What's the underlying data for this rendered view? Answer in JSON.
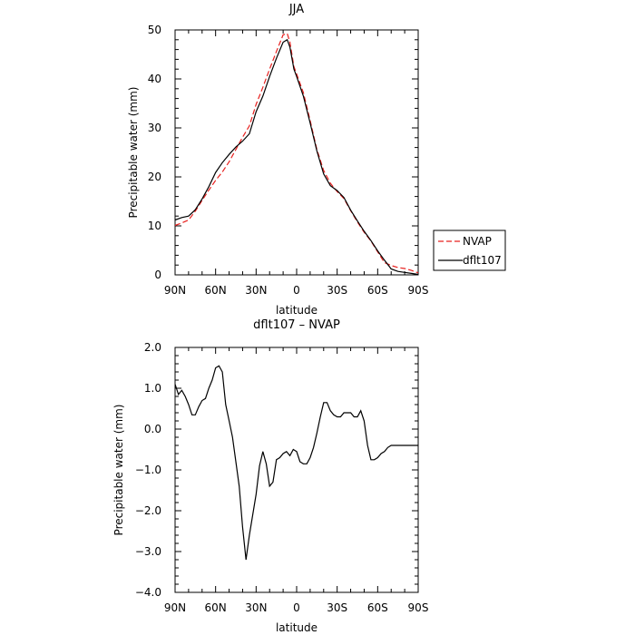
{
  "chart_data": [
    {
      "type": "line",
      "title": "JJA",
      "xlabel": "latitude",
      "ylabel": "Precipitable water (mm)",
      "xlim": [
        90,
        -90
      ],
      "ylim": [
        0,
        50
      ],
      "x_ticks": [
        90,
        60,
        30,
        0,
        -30,
        -60,
        -90
      ],
      "x_tick_labels": [
        "90N",
        "60N",
        "30N",
        "0",
        "30S",
        "60S",
        "90S"
      ],
      "y_ticks": [
        0,
        10,
        20,
        30,
        40,
        50
      ],
      "y_tick_labels": [
        "0",
        "10",
        "20",
        "30",
        "40",
        "50"
      ],
      "legend_position": "right",
      "series": [
        {
          "name": "NVAP",
          "color": "#e8201e",
          "dash": "dashed",
          "x": [
            90,
            85,
            80,
            75,
            70,
            65,
            60,
            55,
            50,
            45,
            40,
            35,
            30,
            25,
            20,
            15,
            10,
            7,
            5,
            2,
            0,
            -5,
            -10,
            -15,
            -20,
            -25,
            -30,
            -35,
            -40,
            -45,
            -50,
            -55,
            -60,
            -65,
            -70,
            -75,
            -80,
            -85,
            -90
          ],
          "y": [
            10.1,
            10.6,
            11.2,
            13.0,
            15.2,
            17.3,
            19.3,
            21.0,
            23.1,
            25.6,
            28.1,
            30.4,
            34.8,
            38.3,
            42.0,
            45.6,
            49.0,
            49.3,
            47.5,
            42.5,
            41.0,
            37.2,
            31.5,
            25.6,
            21.3,
            18.7,
            17.0,
            15.6,
            13.1,
            10.8,
            8.7,
            6.9,
            4.7,
            2.5,
            1.9,
            1.5,
            1.3,
            0.9,
            0.4
          ]
        },
        {
          "name": "dflt107",
          "color": "#000000",
          "dash": "solid",
          "x": [
            90,
            85,
            80,
            75,
            70,
            65,
            60,
            55,
            50,
            45,
            40,
            35,
            30,
            25,
            20,
            15,
            10,
            7,
            5,
            2,
            0,
            -5,
            -10,
            -15,
            -20,
            -25,
            -30,
            -35,
            -40,
            -45,
            -50,
            -55,
            -60,
            -65,
            -70,
            -75,
            -80,
            -85,
            -90
          ],
          "y": [
            11.2,
            11.7,
            12.0,
            13.3,
            15.5,
            18.0,
            20.9,
            22.9,
            24.6,
            26.1,
            27.3,
            28.8,
            33.3,
            36.5,
            40.5,
            44.2,
            47.5,
            48.0,
            46.5,
            42.0,
            40.5,
            36.5,
            31.0,
            25.3,
            20.6,
            18.2,
            17.2,
            15.8,
            13.2,
            11.0,
            8.9,
            7.0,
            4.9,
            3.0,
            1.2,
            0.7,
            0.5,
            0.3,
            0.1
          ]
        }
      ]
    },
    {
      "type": "line",
      "title": "dflt107 – NVAP",
      "xlabel": "latitude",
      "ylabel": "Precipitable water (mm)",
      "xlim": [
        90,
        -90
      ],
      "ylim": [
        -4.0,
        2.0
      ],
      "x_ticks": [
        90,
        60,
        30,
        0,
        -30,
        -60,
        -90
      ],
      "x_tick_labels": [
        "90N",
        "60N",
        "30N",
        "0",
        "30S",
        "60S",
        "90S"
      ],
      "y_ticks": [
        -4.0,
        -3.0,
        -2.0,
        -1.0,
        0.0,
        1.0,
        2.0
      ],
      "y_tick_labels": [
        "−4.0",
        "−3.0",
        "−2.0",
        "−1.0",
        "0.0",
        "1.0",
        "2.0"
      ],
      "series": [
        {
          "color": "#000000",
          "dash": "solid",
          "x": [
            90,
            87.5,
            85,
            82.5,
            80,
            77.5,
            75,
            72.5,
            70,
            67.5,
            65,
            62.5,
            60,
            57.5,
            55,
            52.5,
            50,
            47.5,
            45,
            42.5,
            40,
            37.5,
            35,
            32.5,
            30,
            27.5,
            25,
            22.5,
            20,
            17.5,
            15,
            12.5,
            10,
            7.5,
            5,
            2.5,
            0,
            -2.5,
            -5,
            -7.5,
            -10,
            -12.5,
            -15,
            -17.5,
            -20,
            -22.5,
            -25,
            -27.5,
            -30,
            -32.5,
            -35,
            -37.5,
            -40,
            -42.5,
            -45,
            -47.5,
            -50,
            -52.5,
            -55,
            -57.5,
            -60,
            -62.5,
            -65,
            -67.5,
            -70,
            -72.5,
            -75,
            -77.5,
            -80,
            -82.5,
            -85,
            -87.5,
            -90
          ],
          "y": [
            1.1,
            0.85,
            0.95,
            0.8,
            0.6,
            0.35,
            0.35,
            0.55,
            0.7,
            0.75,
            1.0,
            1.2,
            1.5,
            1.55,
            1.4,
            0.6,
            0.2,
            -0.2,
            -0.8,
            -1.4,
            -2.4,
            -3.2,
            -2.6,
            -2.1,
            -1.6,
            -0.9,
            -0.55,
            -0.85,
            -1.4,
            -1.3,
            -0.75,
            -0.7,
            -0.6,
            -0.55,
            -0.65,
            -0.5,
            -0.55,
            -0.8,
            -0.85,
            -0.85,
            -0.7,
            -0.45,
            -0.1,
            0.3,
            0.65,
            0.65,
            0.45,
            0.35,
            0.3,
            0.3,
            0.4,
            0.4,
            0.4,
            0.3,
            0.3,
            0.45,
            0.2,
            -0.4,
            -0.75,
            -0.75,
            -0.7,
            -0.6,
            -0.55,
            -0.45,
            -0.4,
            -0.4,
            -0.4,
            -0.4,
            -0.4,
            -0.4,
            -0.4,
            -0.4,
            -0.4
          ]
        }
      ]
    }
  ]
}
